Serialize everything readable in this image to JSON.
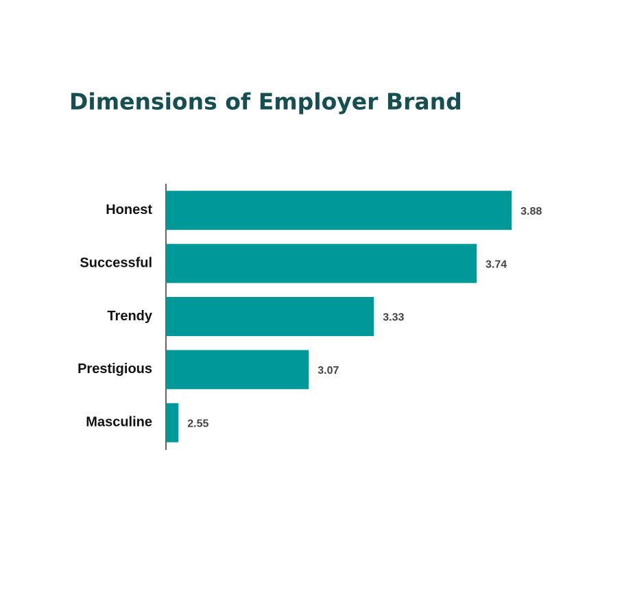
{
  "chart_data": {
    "type": "bar",
    "title": "Dimensions of Employer Brand",
    "categories": [
      "Honest",
      "Successful",
      "Trendy",
      "Prestigious",
      "Masculine"
    ],
    "values": [
      3.88,
      3.74,
      3.33,
      3.07,
      2.55
    ],
    "color": "#009999",
    "xlim": [
      2.5,
      4
    ]
  }
}
